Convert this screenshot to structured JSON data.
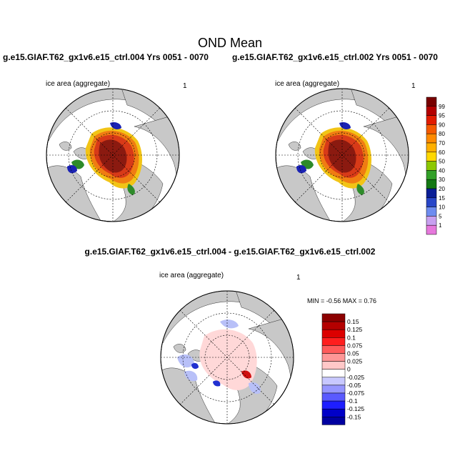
{
  "page": {
    "title": "OND Mean",
    "left_case": "g.e15.GIAF.T62_gx1v6.e15_ctrl.004  Yrs 0051 - 0070",
    "right_case": "g.e15.GIAF.T62_gx1v6.e15_ctrl.002  Yrs 0051 - 0070",
    "diff_title": "g.e15.GIAF.T62_gx1v6.e15_ctrl.004 - g.e15.GIAF.T62_gx1v6.e15_ctrl.002"
  },
  "panels": [
    {
      "id": "left",
      "label": "ice area  (aggregate)",
      "value": "1"
    },
    {
      "id": "right",
      "label": "ice area  (aggregate)",
      "value": "1"
    },
    {
      "id": "diff",
      "label": "ice area  (aggregate)",
      "value": "1",
      "minmax": "MIN =  -0.56 MAX =   0.76"
    }
  ],
  "colors": {
    "land": "#c8c8c8",
    "ice_core": "#8b1a10",
    "ice_mid": "#d83a18",
    "ice_outer": "#f07c12",
    "ice_edge": "#f2c416",
    "ice_green": "#2e8b2a",
    "ice_blue": "#1a22b4",
    "diff_pos": "#ffd8d8",
    "diff_pos_strong": "#d01010",
    "diff_neg": "#b8c0f8",
    "diff_neg_strong": "#2030d0"
  },
  "chart_data": [
    {
      "type": "heatmap",
      "name": "mean-ice-concentration-colorbar",
      "units": "percent",
      "levels": [
        "99",
        "95",
        "90",
        "80",
        "70",
        "60",
        "50",
        "40",
        "30",
        "20",
        "15",
        "10",
        "5",
        "1"
      ],
      "colors": [
        "#780000",
        "#b40000",
        "#e21c00",
        "#f55a00",
        "#ff8a00",
        "#ffb000",
        "#ffd800",
        "#8cc800",
        "#32a028",
        "#147814",
        "#0a1e96",
        "#2846c8",
        "#6e8cf0",
        "#c8a0f0",
        "#e678dc"
      ]
    },
    {
      "type": "heatmap",
      "name": "difference-colorbar",
      "levels": [
        "0.15",
        "0.125",
        "0.1",
        "0.075",
        "0.05",
        "0.025",
        "0",
        "-0.025",
        "-0.05",
        "-0.075",
        "-0.1",
        "-0.125",
        "-0.15"
      ],
      "colors": [
        "#8c0000",
        "#b40000",
        "#dc0000",
        "#ff1e1e",
        "#ff5a5a",
        "#ff9696",
        "#ffc8c8",
        "#ffffff",
        "#c8c8ff",
        "#9696ff",
        "#5a5aff",
        "#1e1eff",
        "#0000c8",
        "#0000a0"
      ],
      "min": -0.56,
      "max": 0.76
    }
  ]
}
